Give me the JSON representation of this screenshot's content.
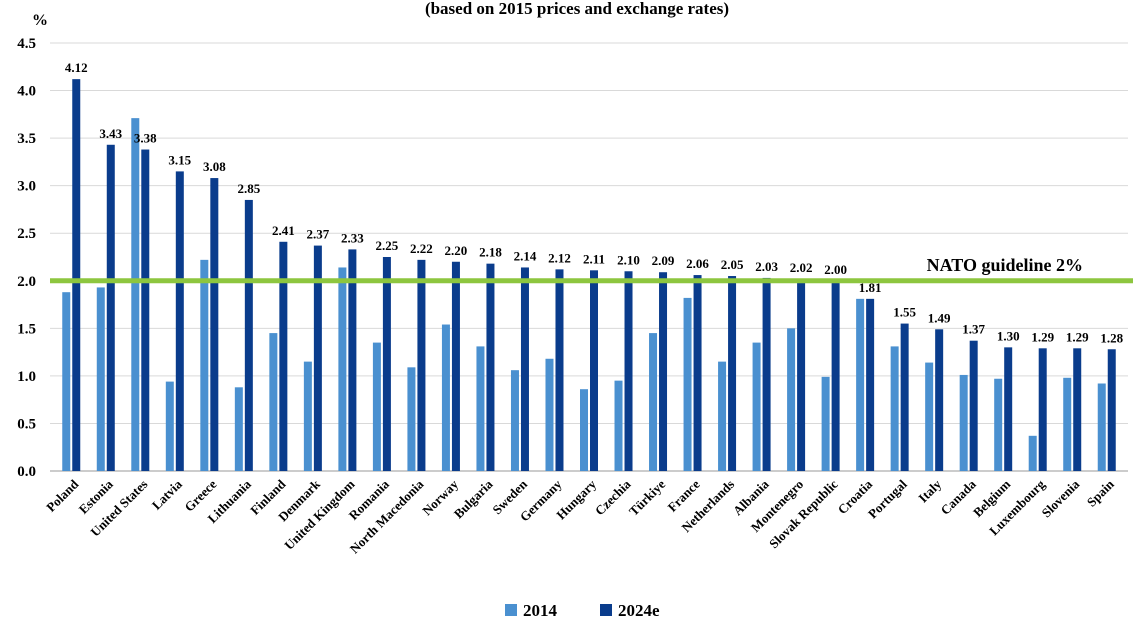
{
  "chart_data": {
    "type": "bar",
    "title": "(based on 2015 prices and exchange rates)",
    "ylabel": "%",
    "ylim": [
      0,
      4.5
    ],
    "yticks": [
      "0.0",
      "0.5",
      "1.0",
      "1.5",
      "2.0",
      "2.5",
      "3.0",
      "3.5",
      "4.0",
      "4.5"
    ],
    "grid": true,
    "legend_position": "bottom-center",
    "categories": [
      "Poland",
      "Estonia",
      "United States",
      "Latvia",
      "Greece",
      "Lithuania",
      "Finland",
      "Denmark",
      "United Kingdom",
      "Romania",
      "North Macedonia",
      "Norway",
      "Bulgaria",
      "Sweden",
      "Germany",
      "Hungary",
      "Czechia",
      "Türkiye",
      "France",
      "Netherlands",
      "Albania",
      "Montenegro",
      "Slovak Republic",
      "Croatia",
      "Portugal",
      "Italy",
      "Canada",
      "Belgium",
      "Luxembourg",
      "Slovenia",
      "Spain"
    ],
    "series": [
      {
        "name": "2014",
        "color": "#4a90d0",
        "values": [
          1.88,
          1.93,
          3.71,
          0.94,
          2.22,
          0.88,
          1.45,
          1.15,
          2.14,
          1.35,
          1.09,
          1.54,
          1.31,
          1.06,
          1.18,
          0.86,
          0.95,
          1.45,
          1.82,
          1.15,
          1.35,
          1.5,
          0.99,
          1.81,
          1.31,
          1.14,
          1.01,
          0.97,
          0.37,
          0.98,
          0.92
        ]
      },
      {
        "name": "2024e",
        "color": "#0a3c8c",
        "values": [
          4.12,
          3.43,
          3.38,
          3.15,
          3.08,
          2.85,
          2.41,
          2.37,
          2.33,
          2.25,
          2.22,
          2.2,
          2.18,
          2.14,
          2.12,
          2.11,
          2.1,
          2.09,
          2.06,
          2.05,
          2.03,
          2.02,
          2.0,
          1.81,
          1.55,
          1.49,
          1.37,
          1.3,
          1.29,
          1.29,
          1.28
        ],
        "labels": [
          "4.12",
          "3.43",
          "3.38",
          "3.15",
          "3.08",
          "2.85",
          "2.41",
          "2.37",
          "2.33",
          "2.25",
          "2.22",
          "2.20",
          "2.18",
          "2.14",
          "2.12",
          "2.11",
          "2.10",
          "2.09",
          "2.06",
          "2.05",
          "2.03",
          "2.02",
          "2.00",
          "1.81",
          "1.55",
          "1.49",
          "1.37",
          "1.30",
          "1.29",
          "1.29",
          "1.28"
        ]
      }
    ],
    "reference_line": {
      "value": 2.0,
      "label": "NATO guideline 2%",
      "color": "#8dc63f"
    }
  }
}
